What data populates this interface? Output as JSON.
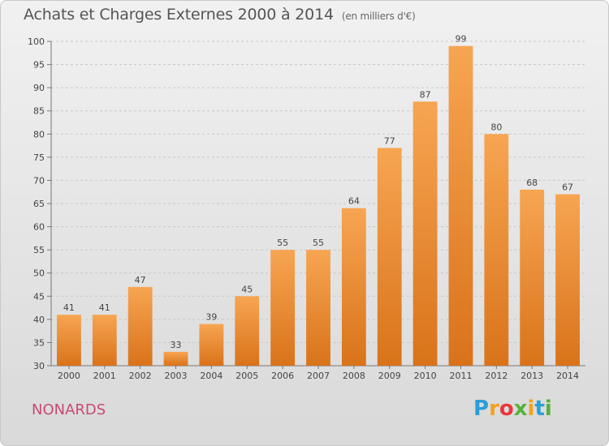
{
  "title": "Achats et Charges Externes 2000 à 2014",
  "subtitle": "(en milliers d'€)",
  "place": "NONARDS",
  "logo": {
    "letters": [
      "P",
      "r",
      "o",
      "x",
      "i",
      "t",
      "i"
    ],
    "colors": [
      "#2a9fd8",
      "#f2a31b",
      "#e8373b",
      "#56b23a",
      "#f2a31b",
      "#2a9fd8",
      "#56b23a"
    ]
  },
  "colors": {
    "bar_top": "#f7a552",
    "bar_bottom": "#d9731a",
    "grid": "#c8c8c8"
  },
  "chart_data": {
    "type": "bar",
    "title": "Achats et Charges Externes 2000 à 2014",
    "subtitle": "(en milliers d'€)",
    "categories": [
      "2000",
      "2001",
      "2002",
      "2003",
      "2004",
      "2005",
      "2006",
      "2007",
      "2008",
      "2009",
      "2010",
      "2011",
      "2012",
      "2013",
      "2014"
    ],
    "values": [
      41,
      41,
      47,
      33,
      39,
      45,
      55,
      55,
      64,
      77,
      87,
      99,
      80,
      68,
      67
    ],
    "ylim": [
      30,
      100
    ],
    "yticks": [
      30,
      35,
      40,
      45,
      50,
      55,
      60,
      65,
      70,
      75,
      80,
      85,
      90,
      95,
      100
    ],
    "grid": true,
    "xlabel": "",
    "ylabel": ""
  }
}
